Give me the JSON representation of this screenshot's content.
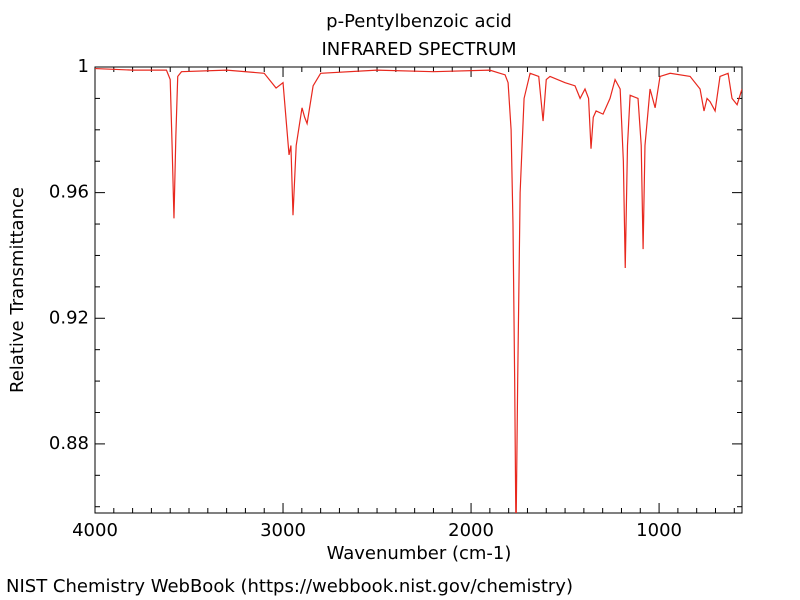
{
  "chart_data": {
    "type": "line",
    "title": "p-Pentylbenzoic acid",
    "subtitle": "INFRARED SPECTRUM",
    "xlabel": "Wavenumber (cm-1)",
    "ylabel": "Relative Transmittance",
    "color": "#e8281e",
    "grid": false,
    "xlim": [
      4000,
      559
    ],
    "ylim": [
      0.858,
      1
    ],
    "xticks": [
      4000,
      3000,
      2000,
      1000
    ],
    "yticks": [
      1,
      0.96,
      0.92,
      0.88
    ],
    "xminorticks": [
      3900,
      3800,
      3700,
      3600,
      3500,
      3400,
      3300,
      3200,
      3100,
      2900,
      2800,
      2700,
      2600,
      2500,
      2400,
      2300,
      2200,
      2100,
      1900,
      1800,
      1700,
      1600,
      1500,
      1400,
      1300,
      1200,
      1100,
      900,
      800,
      700,
      600
    ],
    "yminorticks": [
      0.99,
      0.98,
      0.97,
      0.95,
      0.94,
      0.93,
      0.91,
      0.9,
      0.89,
      0.87,
      0.86
    ],
    "x": [
      4000,
      3800,
      3620,
      3600,
      3590,
      3580,
      3570,
      3560,
      3540,
      3300,
      3100,
      3037,
      3000,
      2968,
      2958,
      2947,
      2930,
      2899,
      2885,
      2872,
      2840,
      2800,
      2500,
      2200,
      1900,
      1846,
      1819,
      1803,
      1787,
      1777,
      1768,
      1761,
      1752,
      1739,
      1718,
      1686,
      1640,
      1617,
      1600,
      1580,
      1500,
      1447,
      1420,
      1394,
      1375,
      1362,
      1350,
      1335,
      1298,
      1261,
      1234,
      1207,
      1190,
      1180,
      1168,
      1154,
      1112,
      1095,
      1085,
      1075,
      1048,
      1021,
      995,
      941,
      835,
      782,
      761,
      745,
      729,
      702,
      676,
      633,
      612,
      585,
      559
    ],
    "values": [
      0.9995,
      0.999,
      0.999,
      0.996,
      0.975,
      0.9518,
      0.978,
      0.997,
      0.9985,
      0.999,
      0.998,
      0.9933,
      0.995,
      0.972,
      0.975,
      0.9528,
      0.975,
      0.987,
      0.984,
      0.982,
      0.994,
      0.998,
      0.999,
      0.9985,
      0.999,
      0.998,
      0.9975,
      0.995,
      0.98,
      0.95,
      0.9,
      0.85,
      0.9,
      0.96,
      0.99,
      0.998,
      0.997,
      0.9828,
      0.996,
      0.997,
      0.995,
      0.994,
      0.99,
      0.993,
      0.99,
      0.974,
      0.984,
      0.986,
      0.985,
      0.99,
      0.996,
      0.993,
      0.97,
      0.936,
      0.975,
      0.991,
      0.99,
      0.975,
      0.942,
      0.975,
      0.993,
      0.987,
      0.997,
      0.998,
      0.997,
      0.993,
      0.986,
      0.99,
      0.989,
      0.986,
      0.997,
      0.998,
      0.99,
      0.988,
      0.993
    ]
  },
  "footer": "NIST Chemistry WebBook (https://webbook.nist.gov/chemistry)"
}
